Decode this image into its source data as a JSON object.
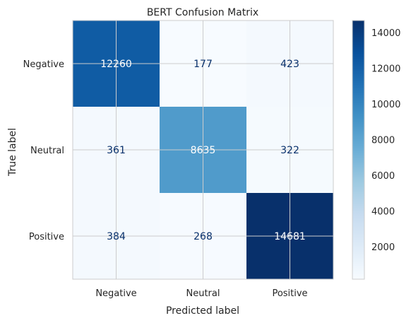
{
  "chart_data": {
    "type": "heatmap",
    "title": "BERT Confusion Matrix",
    "xlabel": "Predicted label",
    "ylabel": "True label",
    "x_categories": [
      "Negative",
      "Neutral",
      "Positive"
    ],
    "y_categories": [
      "Negative",
      "Neutral",
      "Positive"
    ],
    "values": [
      [
        12260,
        177,
        423
      ],
      [
        361,
        8635,
        322
      ],
      [
        384,
        268,
        14681
      ]
    ],
    "colormap": "Blues",
    "colorbar": {
      "ticks": [
        2000,
        4000,
        6000,
        8000,
        10000,
        12000,
        14000
      ],
      "range": [
        177,
        14681
      ]
    },
    "grid": true
  }
}
